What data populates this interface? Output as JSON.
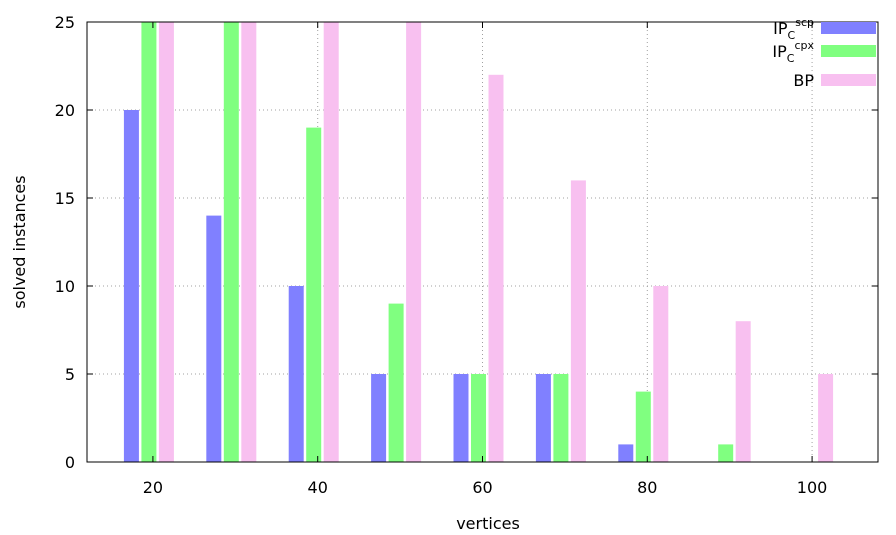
{
  "chart_data": {
    "type": "bar",
    "xlabel": "vertices",
    "ylabel": "solved instances",
    "x": [
      20,
      30,
      40,
      50,
      60,
      70,
      80,
      90,
      100
    ],
    "x_ticks": [
      "20",
      "40",
      "60",
      "80",
      "100"
    ],
    "y_ticks": [
      "0",
      "5",
      "10",
      "15",
      "20",
      "25"
    ],
    "ylim": [
      0,
      25
    ],
    "grid": true,
    "legend_position": "top-right",
    "series": [
      {
        "name": "IP_C^scp",
        "legend_main": "IP",
        "legend_sub": "C",
        "legend_sup": "scp",
        "color": "#8080ff",
        "values": [
          20,
          14,
          10,
          5,
          5,
          5,
          1,
          0,
          0
        ]
      },
      {
        "name": "IP_C^cpx",
        "legend_main": "IP",
        "legend_sub": "C",
        "legend_sup": "cpx",
        "color": "#80ff80",
        "values": [
          25,
          25,
          19,
          9,
          5,
          5,
          4,
          1,
          0
        ]
      },
      {
        "name": "BP",
        "legend_main": "BP",
        "legend_sub": "",
        "legend_sup": "",
        "color": "#f8c0f0",
        "values": [
          25,
          25,
          25,
          25,
          22,
          16,
          10,
          8,
          5
        ]
      }
    ]
  }
}
